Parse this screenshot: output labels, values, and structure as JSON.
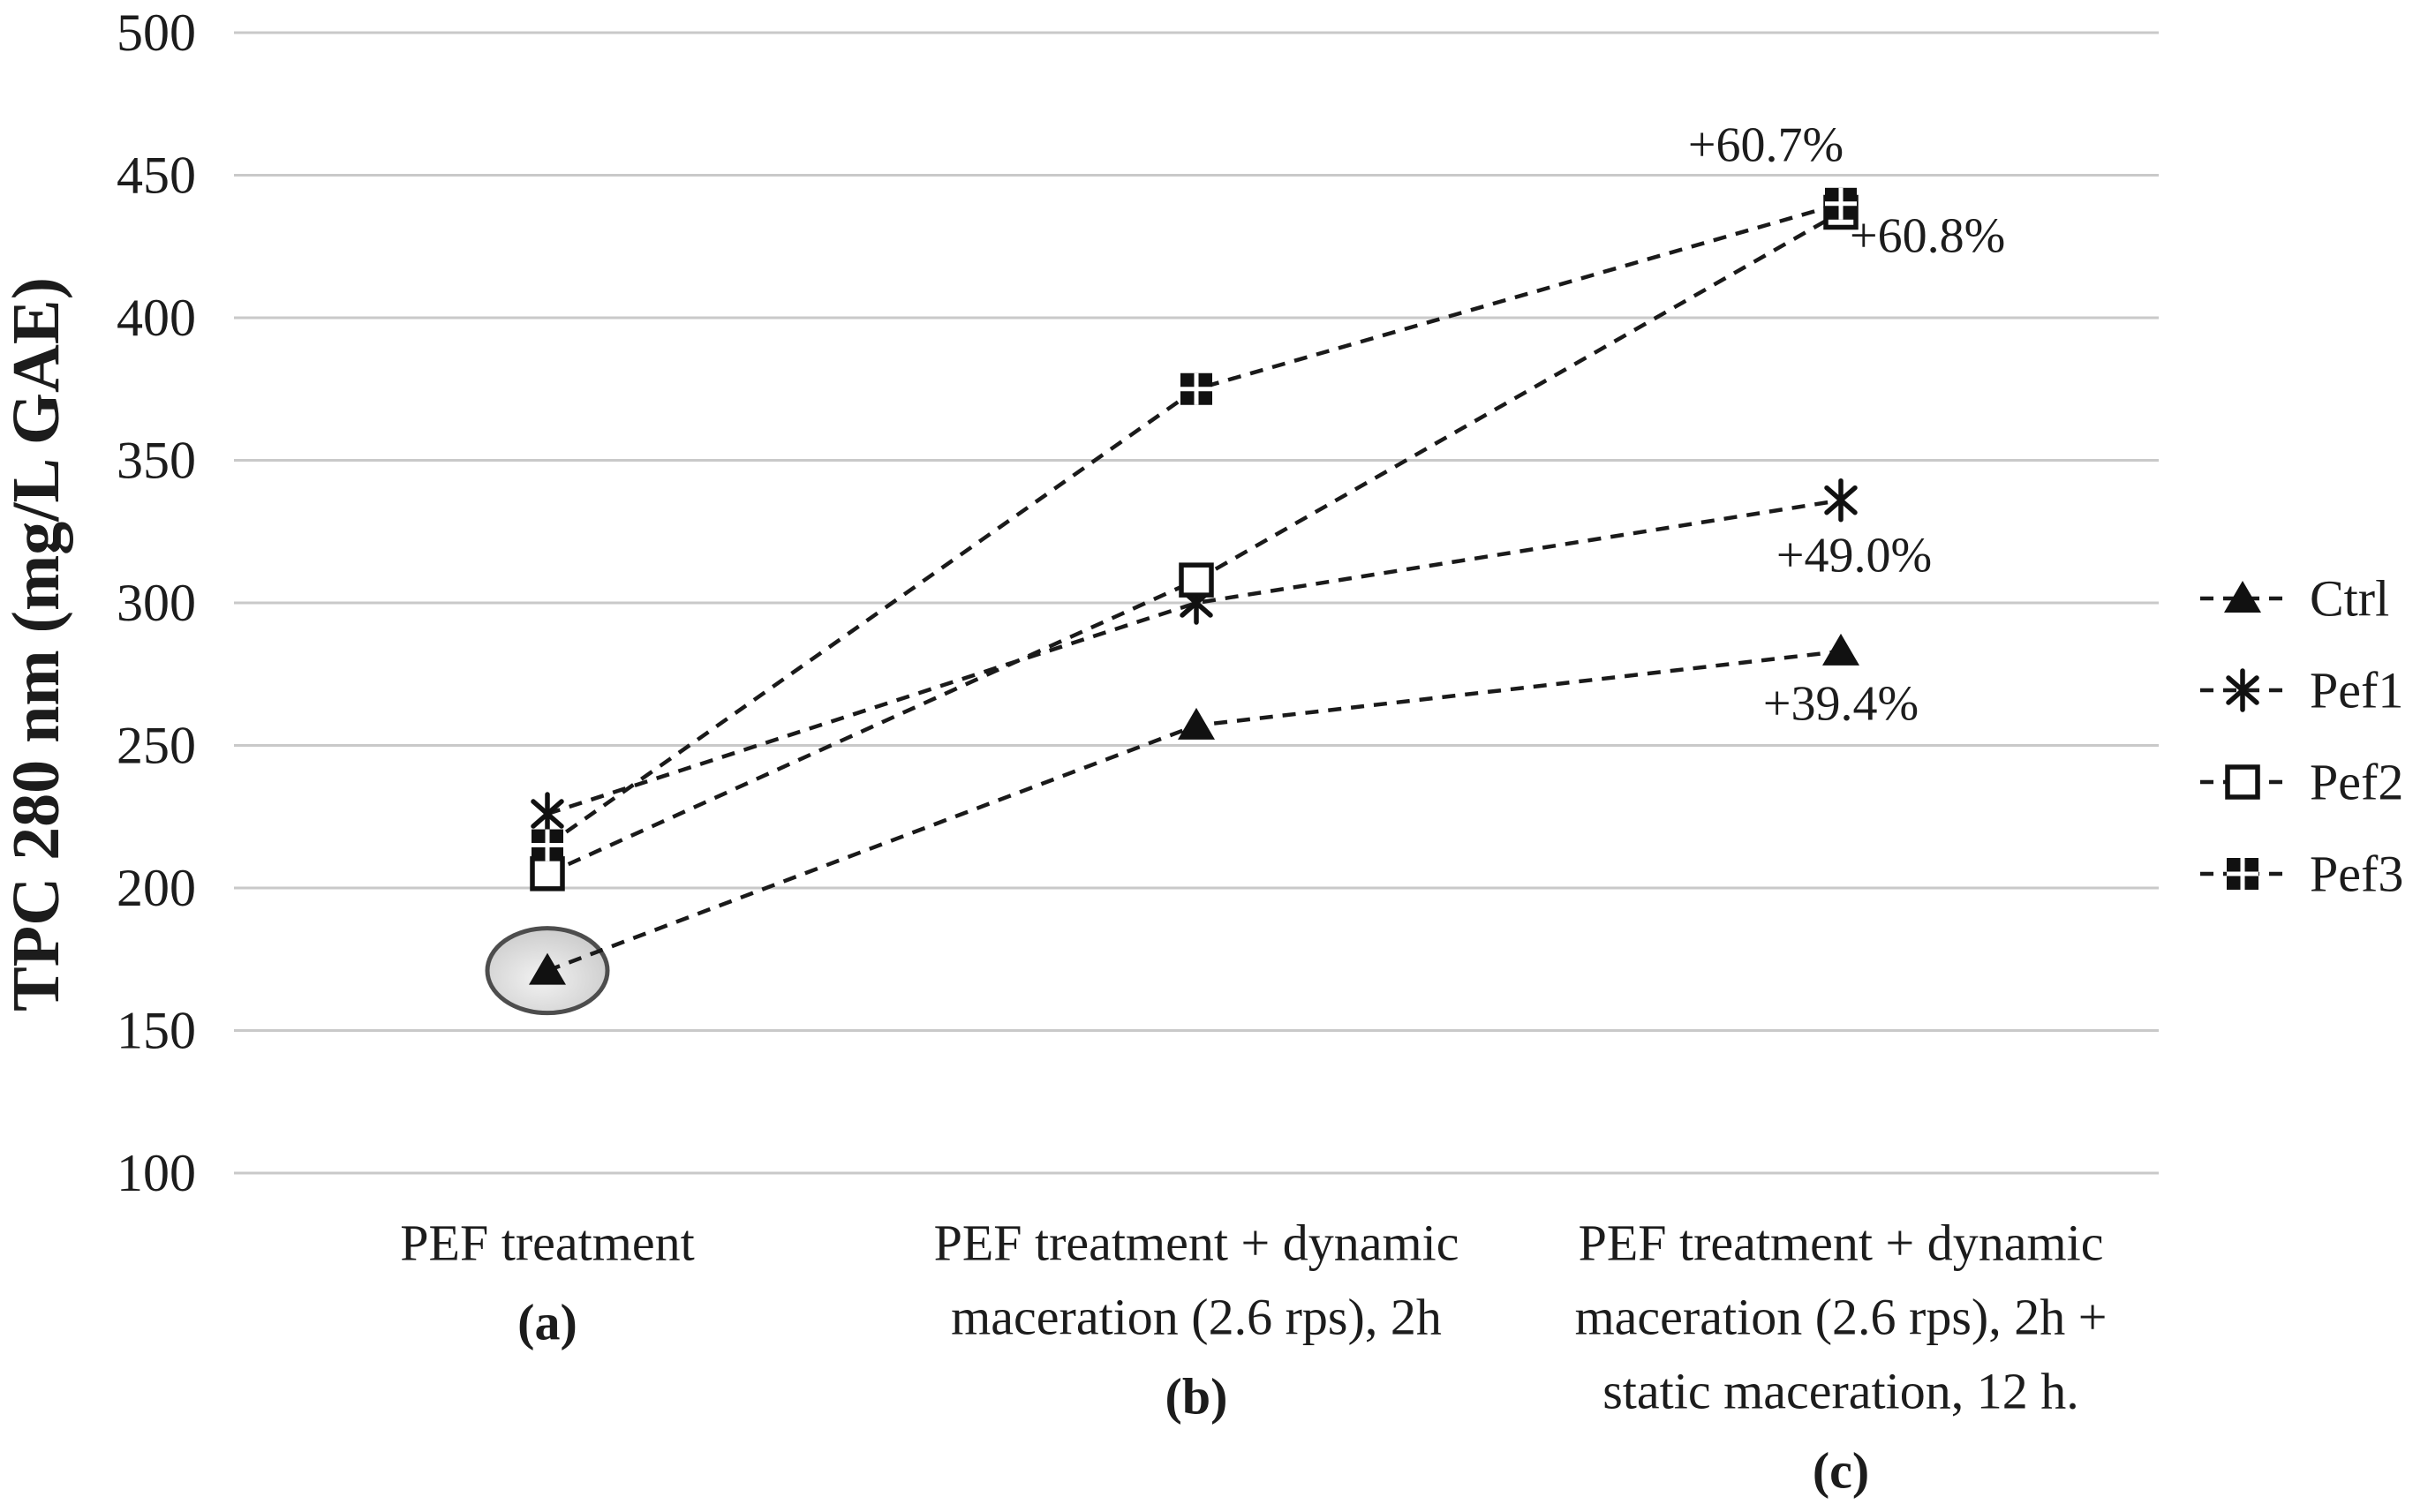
{
  "chart_data": {
    "type": "line",
    "title": "",
    "xlabel": "",
    "ylabel": "TPC 280 nm (mg/L GAE)",
    "ylim": [
      100,
      500
    ],
    "ytick_interval": 50,
    "yticks": [
      500,
      450,
      400,
      350,
      300,
      250,
      200,
      150,
      100
    ],
    "grid": true,
    "legend_position": "right",
    "line_style": "dashed",
    "categories": [
      {
        "label_lines": [
          "PEF treatment"
        ],
        "letter": "(a)"
      },
      {
        "label_lines": [
          "PEF treatment + dynamic",
          "maceration (2.6 rps), 2h"
        ],
        "letter": "(b)"
      },
      {
        "label_lines": [
          "PEF treatment + dynamic",
          "maceration (2.6 rps), 2h +",
          "static maceration, 12 h."
        ],
        "letter": "(c)"
      }
    ],
    "series": [
      {
        "name": "Ctrl",
        "marker": "filled-triangle",
        "values": [
          171,
          257,
          283
        ]
      },
      {
        "name": "Pef1",
        "marker": "asterisk",
        "values": [
          226,
          300,
          336
        ]
      },
      {
        "name": "Pef2",
        "marker": "open-square",
        "values": [
          205,
          308,
          437
        ]
      },
      {
        "name": "Pef3",
        "marker": "filled-square-cluster",
        "values": [
          215,
          375,
          440
        ]
      }
    ],
    "annotations": [
      {
        "text": "+60.7%",
        "category_index": 2,
        "value": 455,
        "dx": -85,
        "anchor": "middle"
      },
      {
        "text": "+60.8%",
        "category_index": 2,
        "value": 423,
        "dx": 10,
        "anchor": "start"
      },
      {
        "text": "+49.0%",
        "category_index": 2,
        "value": 311,
        "dx": 15,
        "anchor": "middle"
      },
      {
        "text": "+39.4%",
        "category_index": 2,
        "value": 259,
        "dx": 0,
        "anchor": "middle"
      }
    ],
    "highlight": {
      "shape": "ellipse",
      "series": "Ctrl",
      "category_index": 0,
      "value": 171
    }
  },
  "colors": {
    "series_line": "#1a1a1a",
    "marker_fill": "#111111",
    "text": "#1c1c1c",
    "gridline": "#c9c9c9",
    "background": "#ffffff",
    "highlight_stroke": "#4d4d4d",
    "highlight_fill_center": "#f2f2f2",
    "highlight_fill_edge": "#c3c3c3"
  }
}
